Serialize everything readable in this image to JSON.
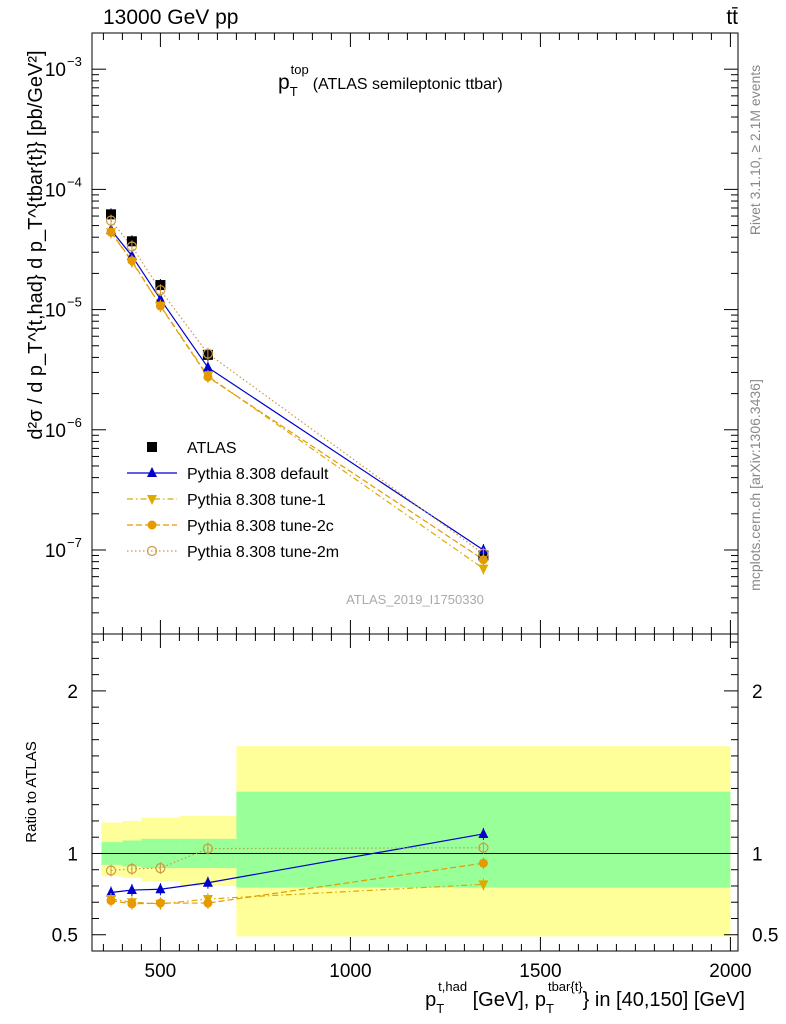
{
  "header": {
    "left": "13000 GeV pp",
    "right": "tt̄"
  },
  "side_labels": {
    "rivet": "Rivet 3.1.10, ≥ 2.1M events",
    "mcplots": "mcplots.cern.ch [arXiv:1306.3436]"
  },
  "watermark": "ATLAS_2019_I1750330",
  "colors": {
    "atlas": "#000000",
    "default": "#0000cc",
    "tune1": "#ddaa00",
    "tune2c": "#e69900",
    "tune2m": "#cc9944",
    "band_inner": "#99ff99",
    "band_outer": "#ffff99"
  },
  "chart_data": [
    {
      "type": "scatter",
      "panel": "main",
      "title": "p_T^top (ATLAS semileptonic ttbar)",
      "title_main": "p",
      "title_sub": "T",
      "title_sup": "top",
      "title_rest": "(ATLAS semileptonic ttbar)",
      "ylabel": "d²σ / d p_T^{t,had} d p_T^{tbar{t}} [pb/GeV²]",
      "yscale": "log",
      "ylim": [
        2e-08,
        0.002
      ],
      "xlim": [
        320,
        2020
      ],
      "yticks": [
        {
          "v": 1e-07,
          "base": "10",
          "exp": "−7"
        },
        {
          "v": 1e-06,
          "base": "10",
          "exp": "−6"
        },
        {
          "v": 1e-05,
          "base": "10",
          "exp": "−5"
        },
        {
          "v": 0.0001,
          "base": "10",
          "exp": "−4"
        },
        {
          "v": 0.001,
          "base": "10",
          "exp": "−3"
        }
      ],
      "legend_placement": "lower-left",
      "x": [
        370,
        425,
        500,
        625,
        1350
      ],
      "series": [
        {
          "name": "ATLAS",
          "key": "atlas",
          "marker": "square",
          "line": "none",
          "values": [
            6.2e-05,
            3.7e-05,
            1.6e-05,
            4.2e-06,
            9e-08
          ]
        },
        {
          "name": "Pythia 8.308 default",
          "key": "default",
          "marker": "triangle-up",
          "line": "solid",
          "values": [
            4.6e-05,
            2.8e-05,
            1.22e-05,
            3.3e-06,
            1e-07
          ]
        },
        {
          "name": "Pythia 8.308 tune-1",
          "key": "tune1",
          "marker": "triangle-down",
          "line": "dashdot",
          "values": [
            4.4e-05,
            2.5e-05,
            1.08e-05,
            2.8e-06,
            7e-08
          ]
        },
        {
          "name": "Pythia 8.308 tune-2c",
          "key": "tune2c",
          "marker": "circle",
          "line": "dashed",
          "values": [
            4.4e-05,
            2.55e-05,
            1.07e-05,
            2.75e-06,
            8.3e-08
          ]
        },
        {
          "name": "Pythia 8.308 tune-2m",
          "key": "tune2m",
          "marker": "open-circle",
          "line": "dotted",
          "values": [
            5.5e-05,
            3.35e-05,
            1.45e-05,
            4.3e-06,
            9.3e-08
          ]
        }
      ]
    },
    {
      "type": "scatter",
      "panel": "ratio",
      "ylabel": "Ratio to ATLAS",
      "ylim": [
        0.4,
        2.35
      ],
      "xlim": [
        320,
        2020
      ],
      "xlabel": "p_T^{t,had} [GeV], p_T^{tbar{t}} in [40,150] [GeV]",
      "xlabel_p": "p",
      "xlabel_sub": "T",
      "xlabel_sup1": "t,had",
      "xlabel_mid": " [GeV], p",
      "xlabel_sup2": "tbar{t}",
      "xlabel_end": "} in [40,150] [GeV]",
      "xticks": [
        500,
        1000,
        1500,
        2000
      ],
      "yticks": [
        0.5,
        1,
        2
      ],
      "bands": [
        {
          "x0": 345,
          "x1": 400,
          "inner": [
            0.93,
            1.07
          ],
          "outer": [
            0.86,
            1.19
          ]
        },
        {
          "x0": 400,
          "x1": 450,
          "inner": [
            0.92,
            1.08
          ],
          "outer": [
            0.85,
            1.2
          ]
        },
        {
          "x0": 450,
          "x1": 550,
          "inner": [
            0.91,
            1.09
          ],
          "outer": [
            0.83,
            1.22
          ]
        },
        {
          "x0": 550,
          "x1": 700,
          "inner": [
            0.91,
            1.09
          ],
          "outer": [
            0.8,
            1.23
          ]
        },
        {
          "x0": 700,
          "x1": 2000,
          "inner": [
            0.79,
            1.38
          ],
          "outer": [
            0.49,
            1.66
          ]
        }
      ],
      "x": [
        370,
        425,
        500,
        625,
        1350
      ],
      "series": [
        {
          "name": "Pythia 8.308 default",
          "key": "default",
          "marker": "triangle-up",
          "line": "solid",
          "values": [
            0.76,
            0.775,
            0.78,
            0.82,
            1.12
          ]
        },
        {
          "name": "Pythia 8.308 tune-1",
          "key": "tune1",
          "marker": "triangle-down",
          "line": "dashdot",
          "values": [
            0.72,
            0.7,
            0.69,
            0.72,
            0.81
          ]
        },
        {
          "name": "Pythia 8.308 tune-2c",
          "key": "tune2c",
          "marker": "circle",
          "line": "dashed",
          "values": [
            0.71,
            0.69,
            0.695,
            0.695,
            0.94
          ]
        },
        {
          "name": "Pythia 8.308 tune-2m",
          "key": "tune2m",
          "marker": "open-circle",
          "line": "dotted",
          "values": [
            0.895,
            0.905,
            0.91,
            1.03,
            1.035
          ]
        }
      ]
    }
  ]
}
